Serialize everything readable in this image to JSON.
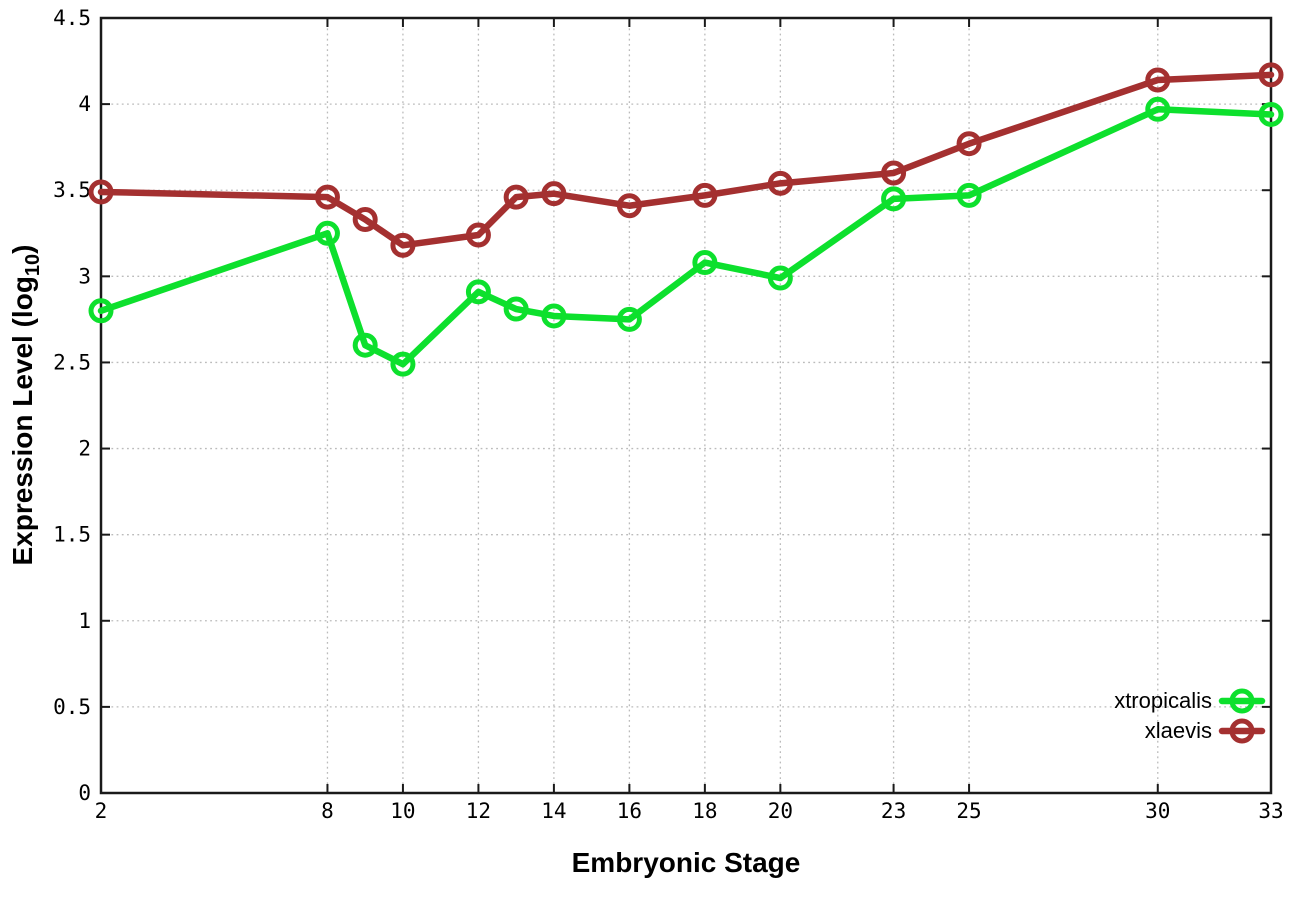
{
  "chart_data": {
    "type": "line",
    "title": "",
    "xlabel": "Embryonic Stage",
    "ylabel_prefix": "Expression Level (log",
    "ylabel_sub": "10",
    "ylabel_suffix": ")",
    "x": [
      2,
      8,
      9,
      10,
      12,
      13,
      14,
      16,
      18,
      20,
      23,
      25,
      30,
      33
    ],
    "xlim": [
      2,
      33
    ],
    "ylim": [
      0,
      4.5
    ],
    "xticks": [
      2,
      8,
      10,
      12,
      14,
      16,
      18,
      20,
      23,
      25,
      30,
      33
    ],
    "xtick_labels": [
      "2",
      "8",
      "10",
      "12",
      "14",
      "16",
      "18",
      "20",
      "23",
      "25",
      "30",
      "33"
    ],
    "yticks": [
      0,
      0.5,
      1,
      1.5,
      2,
      2.5,
      3,
      3.5,
      4,
      4.5
    ],
    "ytick_labels": [
      "0",
      "0.5",
      "1",
      "1.5",
      "2",
      "2.5",
      "3",
      "3.5",
      "4",
      "4.5"
    ],
    "grid": true,
    "legend_position": "bottom-right",
    "series": [
      {
        "name": "xtropicalis",
        "color": "#0de02d",
        "marker": "open-circle",
        "values": [
          2.8,
          3.25,
          2.6,
          2.49,
          2.91,
          2.81,
          2.77,
          2.75,
          3.08,
          2.99,
          3.45,
          3.47,
          3.97,
          3.94
        ]
      },
      {
        "name": "xlaevis",
        "color": "#a43030",
        "marker": "open-circle",
        "values": [
          3.49,
          3.46,
          3.33,
          3.18,
          3.24,
          3.46,
          3.48,
          3.41,
          3.47,
          3.54,
          3.6,
          3.77,
          4.14,
          4.17
        ]
      }
    ]
  },
  "colors": {
    "background": "#ffffff",
    "grid": "#bbbbbb",
    "axis": "#1a1a1a",
    "text": "#000000"
  }
}
